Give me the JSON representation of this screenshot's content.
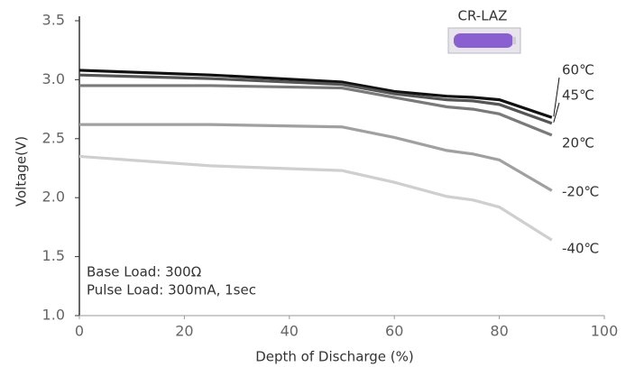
{
  "chart_data": {
    "type": "line",
    "title": "CR-LAZ",
    "x_label": "Depth of Discharge (%)",
    "y_label": "Voltage(V)",
    "annotations": [
      "Base Load: 300Ω",
      "Pulse Load: 300mA, 1sec"
    ],
    "x": [
      0,
      25,
      50,
      60,
      70,
      75,
      80,
      90
    ],
    "series": [
      {
        "name": "60℃",
        "color": "#111111",
        "values": [
          3.08,
          3.04,
          2.98,
          2.9,
          2.86,
          2.85,
          2.83,
          2.68
        ]
      },
      {
        "name": "45℃",
        "color": "#555555",
        "values": [
          3.04,
          3.01,
          2.96,
          2.88,
          2.83,
          2.82,
          2.79,
          2.63
        ]
      },
      {
        "name": "20℃",
        "color": "#7a7a7a",
        "values": [
          2.95,
          2.95,
          2.93,
          2.85,
          2.77,
          2.75,
          2.71,
          2.53
        ]
      },
      {
        "name": "-20℃",
        "color": "#a0a0a0",
        "values": [
          2.62,
          2.62,
          2.6,
          2.51,
          2.4,
          2.37,
          2.32,
          2.06
        ]
      },
      {
        "name": "-40℃",
        "color": "#cfcfcf",
        "values": [
          2.35,
          2.27,
          2.23,
          2.13,
          2.01,
          1.98,
          1.92,
          1.64
        ]
      }
    ],
    "xlim": [
      0,
      100
    ],
    "xticks": [
      0,
      20,
      40,
      60,
      80,
      100
    ],
    "ylim": [
      1.0,
      3.5
    ],
    "yticks": [
      {
        "value": 1.0,
        "label": "1.0"
      },
      1.5,
      {
        "value": 2.0,
        "label": "2.0"
      },
      2.5,
      {
        "value": 3.0,
        "label": "3.0"
      },
      3.5
    ],
    "grid": false
  }
}
